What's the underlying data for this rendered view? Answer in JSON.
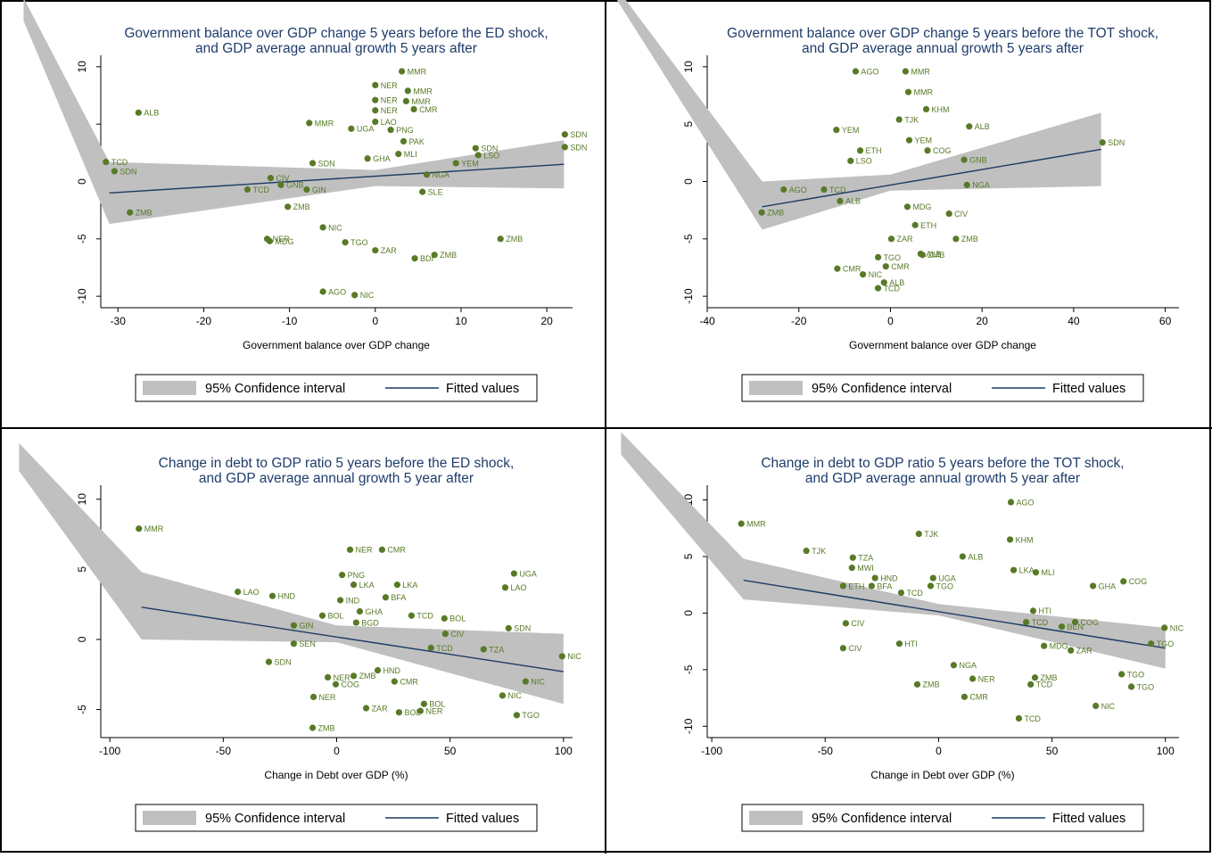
{
  "chart_data": [
    {
      "type": "scatter",
      "title": [
        "Government balance over GDP change 5 years before the ED shock,",
        "and GDP average annual growth 5 years after"
      ],
      "xlabel": "Government balance over GDP change",
      "legend": [
        "95% Confidence interval",
        "Fitted values"
      ],
      "color": "#587a26",
      "fit_color": "#1c3b63",
      "ci_color": "#c0c0c0",
      "xlim": [
        -32,
        23
      ],
      "ylim": [
        -11,
        11
      ],
      "xticks": [
        -30,
        -20,
        -10,
        0,
        10,
        20
      ],
      "yticks": [
        -10,
        -5,
        0,
        5,
        10
      ],
      "labels": [
        "MMR",
        "NER",
        "MMR",
        "NER",
        "MMR",
        "NER",
        "CMR",
        "ALB",
        "LAO",
        "MMR",
        "UGA",
        "PNG",
        "SDN",
        "SDN",
        "SDN",
        "LSO",
        "MLI",
        "YEM",
        "TCD",
        "SDN",
        "SDN",
        "NGA",
        "CIV",
        "GNB",
        "TCD",
        "GIN",
        "SLE",
        "ZMB",
        "ZMB",
        "NIC",
        "NER",
        "MDG",
        "TGO",
        "ZAR",
        "ZMB",
        "BDI",
        "ZMB",
        "AGO",
        "NIC",
        "GHA",
        "PAK"
      ],
      "x": [
        3.1,
        0,
        3.8,
        0,
        3.6,
        0,
        4.5,
        -27.6,
        0,
        -7.7,
        -2.8,
        1.8,
        22.1,
        22.1,
        11.7,
        12.0,
        2.7,
        9.4,
        -31.4,
        -30.4,
        -7.3,
        6.0,
        -12.2,
        -11.0,
        -14.9,
        -8.0,
        5.5,
        -28.6,
        -10.2,
        -6.1,
        -12.6,
        -12.3,
        -3.5,
        0,
        6.9,
        4.6,
        14.6,
        -6.1,
        -2.4,
        -0.9,
        3.3
      ],
      "y": [
        9.6,
        8.4,
        7.9,
        7.1,
        7.0,
        6.2,
        6.3,
        6.0,
        5.2,
        5.1,
        4.6,
        4.5,
        4.1,
        3.0,
        2.9,
        2.3,
        2.4,
        1.6,
        1.7,
        0.9,
        1.6,
        0.6,
        0.3,
        -0.3,
        -0.7,
        -0.7,
        -0.9,
        -2.7,
        -2.2,
        -4.0,
        -5.0,
        -5.2,
        -5.3,
        -6.0,
        -6.4,
        -6.7,
        -5.0,
        -9.6,
        -9.9,
        2.0,
        3.5
      ],
      "fit": {
        "x": [
          -31,
          22
        ],
        "y": [
          -1.0,
          1.5
        ]
      },
      "ci": {
        "x": [
          -41,
          -31,
          0,
          22
        ],
        "upper": [
          16,
          1.7,
          1.0,
          3.6
        ],
        "lower": [
          14,
          -3.7,
          -0.4,
          -0.6
        ]
      }
    },
    {
      "type": "scatter",
      "title": [
        "Government balance over GDP change 5 years before the TOT shock,",
        "and GDP average annual growth 5 years after"
      ],
      "xlabel": "Government balance over GDP change",
      "legend": [
        "95% Confidence interval",
        "Fitted values"
      ],
      "color": "#587a26",
      "fit_color": "#1c3b63",
      "ci_color": "#c0c0c0",
      "xlim": [
        -40,
        63
      ],
      "ylim": [
        -11,
        11
      ],
      "xticks": [
        -40,
        -20,
        0,
        20,
        40,
        60
      ],
      "yticks": [
        -10,
        -5,
        0,
        5,
        10
      ],
      "labels": [
        "AGO",
        "MMR",
        "MMR",
        "KHM",
        "TJK",
        "ALB",
        "YEM",
        "SDN",
        "YEM",
        "COG",
        "GNB",
        "LSO",
        "ETH",
        "AGO",
        "TCD",
        "ZMB",
        "ALB",
        "NGA",
        "CIV",
        "ZMB",
        "ZAR",
        "ALB",
        "ZMB",
        "CMR",
        "CMR",
        "NIC",
        "ALB",
        "TCD",
        "TGO",
        "ETH",
        "MDG"
      ],
      "x": [
        -7.6,
        3.3,
        3.9,
        7.8,
        1.9,
        17.2,
        -11.8,
        46.3,
        4.1,
        8.1,
        16.1,
        -8.7,
        -6.6,
        -23.3,
        -14.5,
        -28.1,
        -11.0,
        16.7,
        12.8,
        14.3,
        0.2,
        6.6,
        7.0,
        -11.6,
        -1.0,
        -6.0,
        -1.4,
        -2.7,
        -2.7,
        5.4,
        3.7
      ],
      "y": [
        9.6,
        9.6,
        7.8,
        6.3,
        5.4,
        4.8,
        4.5,
        3.4,
        3.6,
        2.7,
        1.9,
        1.8,
        2.7,
        -0.7,
        -0.7,
        -2.7,
        -1.7,
        -0.3,
        -2.8,
        -5.0,
        -5.0,
        -6.3,
        -6.4,
        -7.6,
        -7.4,
        -8.1,
        -8.8,
        -9.3,
        -6.6,
        -3.8,
        -2.2
      ],
      "fit": {
        "x": [
          -28,
          46
        ],
        "y": [
          -2.2,
          2.8
        ]
      },
      "ci": {
        "x": [
          -60,
          -28,
          0,
          46
        ],
        "upper": [
          17,
          0,
          0.6,
          6
        ],
        "lower": [
          16,
          -4.2,
          -0.8,
          -0.4
        ]
      }
    },
    {
      "type": "scatter",
      "title": [
        "Change in debt to GDP ratio 5 years before the ED shock,",
        "and GDP average annual growth 5 year after"
      ],
      "xlabel": "Change in Debt over GDP (%)",
      "legend": [
        "95% Confidence interval",
        "Fitted values"
      ],
      "color": "#587a26",
      "fit_color": "#1c3b63",
      "ci_color": "#c0c0c0",
      "xlim": [
        -104,
        104
      ],
      "ylim": [
        -7,
        11
      ],
      "xticks": [
        -100,
        -50,
        0,
        50,
        100
      ],
      "yticks": [
        -5,
        0,
        5,
        10
      ],
      "labels": [
        "MMR",
        "NER",
        "CMR",
        "UGA",
        "PNG",
        "LKA",
        "LAO",
        "LAO",
        "HND",
        "LKA",
        "IND",
        "BFA",
        "GHA",
        "BGD",
        "BOL",
        "BOL",
        "TCD",
        "SDN",
        "CIV",
        "GIN",
        "SEN",
        "TZA",
        "TCD",
        "NIC",
        "SDN",
        "NIC",
        "CMR",
        "HND",
        "ZMB",
        "NER",
        "COG",
        "NER",
        "NIC",
        "BOL",
        "NER",
        "BOL",
        "ZAR",
        "TGO",
        "ZMB"
      ],
      "x": [
        -87.2,
        5.9,
        20.0,
        78.2,
        2.4,
        7.5,
        74.3,
        -43.6,
        -28.3,
        26.7,
        1.6,
        21.6,
        10.2,
        8.6,
        -6.3,
        47.5,
        33.0,
        75.8,
        47.9,
        -18.9,
        -18.9,
        64.8,
        41.6,
        99.4,
        -29.9,
        83.3,
        25.5,
        18.1,
        7.5,
        -3.9,
        -0.4,
        -10.2,
        73.1,
        38.5,
        36.9,
        27.5,
        13.0,
        79.4,
        -10.6
      ],
      "y": [
        7.9,
        6.4,
        6.4,
        4.7,
        4.6,
        3.9,
        3.7,
        3.4,
        3.1,
        3.9,
        2.8,
        3.0,
        2.0,
        1.2,
        1.7,
        1.5,
        1.7,
        0.8,
        0.4,
        1.0,
        -0.3,
        -0.7,
        -0.6,
        -1.2,
        -1.6,
        -3.0,
        -3.0,
        -2.2,
        -2.6,
        -2.7,
        -3.2,
        -4.1,
        -4.0,
        -4.6,
        -5.1,
        -5.2,
        -4.9,
        -5.4,
        -6.3
      ],
      "fit": {
        "x": [
          -86,
          100
        ],
        "y": [
          2.3,
          -2.3
        ]
      },
      "ci": {
        "x": [
          -140,
          -86,
          0,
          100
        ],
        "upper": [
          14,
          4.8,
          1.0,
          0.4
        ],
        "lower": [
          12,
          0,
          -0.2,
          -4.6
        ]
      }
    },
    {
      "type": "scatter",
      "title": [
        "Change in debt to GDP ratio 5 years before the TOT shock,",
        "and GDP average annual growth 5 year after"
      ],
      "xlabel": "Change in Debt over GDP (%)",
      "legend": [
        "95% Confidence interval",
        "Fitted values"
      ],
      "color": "#587a26",
      "fit_color": "#1c3b63",
      "ci_color": "#c0c0c0",
      "xlim": [
        -102,
        106
      ],
      "ylim": [
        -11,
        11.3
      ],
      "xticks": [
        -100,
        -50,
        0,
        50,
        100
      ],
      "yticks": [
        -10,
        -5,
        0,
        5,
        10
      ],
      "labels": [
        "AGO",
        "MMR",
        "TJK",
        "KHM",
        "TJK",
        "ALB",
        "TZA",
        "MWI",
        "LKA",
        "MLI",
        "HND",
        "UGA",
        "COG",
        "GHA",
        "ETH",
        "BFA",
        "TGO",
        "TCD",
        "HTI",
        "COG",
        "BEN",
        "TCD",
        "NIC",
        "TGO",
        "ZAR",
        "MDG",
        "CIV",
        "CIV",
        "HTI",
        "NGA",
        "NER",
        "ZMB",
        "TCD",
        "ZMB",
        "CMR",
        "TGO",
        "TGO",
        "NIC",
        "TCD"
      ],
      "x": [
        31.9,
        -87.0,
        -8.7,
        31.5,
        -58.3,
        10.6,
        -37.8,
        -38.2,
        33.1,
        42.9,
        -28.0,
        -2.4,
        81.5,
        68.1,
        -42.1,
        -29.5,
        -3.5,
        -16.5,
        41.7,
        60.2,
        54.3,
        38.6,
        99.6,
        93.7,
        58.3,
        46.5,
        -40.9,
        -42.1,
        -17.3,
        6.7,
        15.0,
        42.5,
        40.6,
        -9.4,
        11.4,
        80.7,
        85.0,
        69.3,
        35.4
      ],
      "y": [
        9.8,
        7.9,
        7.0,
        6.5,
        5.5,
        5.0,
        4.9,
        4.0,
        3.8,
        3.6,
        3.1,
        3.1,
        2.8,
        2.4,
        2.4,
        2.4,
        2.4,
        1.8,
        0.2,
        -0.8,
        -1.2,
        -0.8,
        -1.3,
        -2.7,
        -3.3,
        -2.9,
        -0.9,
        -3.1,
        -2.7,
        -4.6,
        -5.8,
        -5.7,
        -6.3,
        -6.3,
        -7.4,
        -5.4,
        -6.5,
        -8.2,
        -9.3
      ],
      "fit": {
        "x": [
          -86,
          100
        ],
        "y": [
          2.9,
          -3.1
        ]
      },
      "ci": {
        "x": [
          -140,
          -86,
          0,
          100
        ],
        "upper": [
          16,
          4.8,
          0.8,
          -1.3
        ],
        "lower": [
          14,
          1.2,
          -0.2,
          -4.9
        ]
      }
    }
  ]
}
